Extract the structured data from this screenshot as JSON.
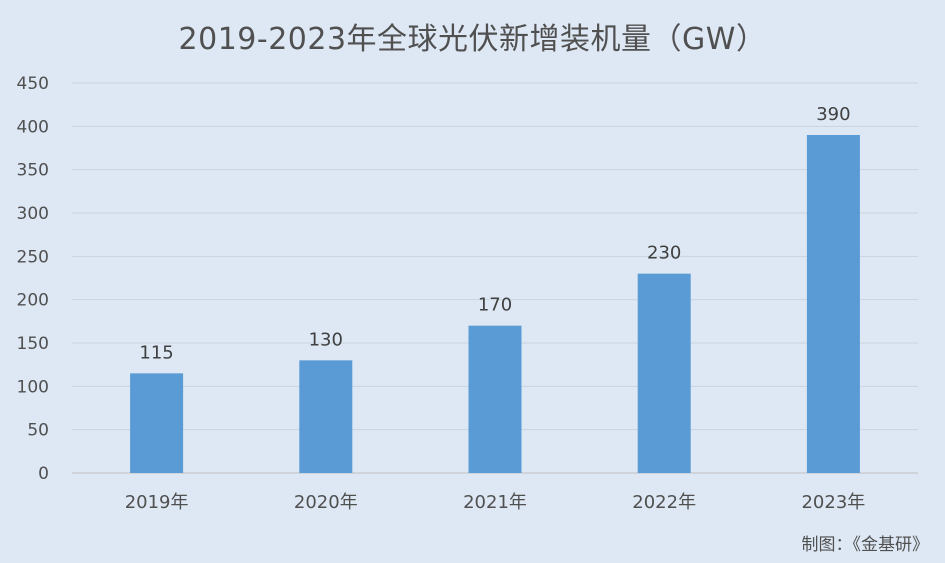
{
  "chart_data": {
    "type": "bar",
    "title": "2019-2023年全球光伏新增装机量（GW）",
    "categories": [
      "2019年",
      "2020年",
      "2021年",
      "2022年",
      "2023年"
    ],
    "values": [
      115,
      130,
      170,
      230,
      390
    ],
    "ylim": [
      0,
      450
    ],
    "yticks": [
      0,
      50,
      100,
      150,
      200,
      250,
      300,
      350,
      400,
      450
    ],
    "grid": true,
    "bar_color": "#5b9bd5",
    "background": "#dde8f4"
  },
  "credit": "制图：《金基研》"
}
